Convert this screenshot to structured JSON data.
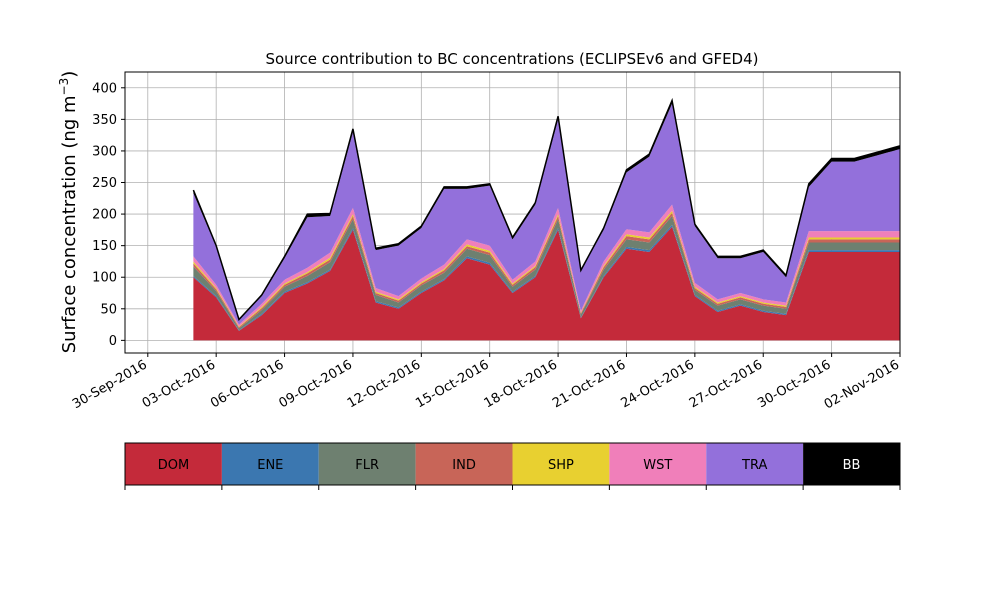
{
  "chart_data": {
    "type": "area",
    "stacked": true,
    "title": "Source contribution to BC concentrations (ECLIPSEv6 and GFED4)",
    "ylabel": "Surface concentration (ng m",
    "ylabel_sup": "−3",
    "ylabel_close": ")",
    "xlabel": "",
    "ylim": [
      -20,
      425
    ],
    "yticks": [
      0,
      50,
      100,
      150,
      200,
      250,
      300,
      350,
      400
    ],
    "xlim_days_note": "",
    "x_axis": {
      "start": "2016-09-29",
      "end": "2016-11-02",
      "ticks": [
        "30-Sep-2016",
        "03-Oct-2016",
        "06-Oct-2016",
        "09-Oct-2016",
        "12-Oct-2016",
        "15-Oct-2016",
        "18-Oct-2016",
        "21-Oct-2016",
        "24-Oct-2016",
        "27-Oct-2016",
        "30-Oct-2016",
        "02-Nov-2016"
      ]
    },
    "grid": true,
    "x": [
      "2016-10-02",
      "2016-10-03",
      "2016-10-04",
      "2016-10-05",
      "2016-10-06",
      "2016-10-07",
      "2016-10-08",
      "2016-10-09",
      "2016-10-10",
      "2016-10-11",
      "2016-10-12",
      "2016-10-13",
      "2016-10-14",
      "2016-10-15",
      "2016-10-16",
      "2016-10-17",
      "2016-10-18",
      "2016-10-19",
      "2016-10-20",
      "2016-10-21",
      "2016-10-22",
      "2016-10-23",
      "2016-10-24",
      "2016-10-25",
      "2016-10-26",
      "2016-10-27",
      "2016-10-28",
      "2016-10-29",
      "2016-10-30",
      "2016-10-31",
      "2016-11-01",
      "2016-11-02"
    ],
    "series": [
      {
        "name": "DOM",
        "color": "#c42a3a",
        "values": [
          100,
          68,
          15,
          40,
          75,
          90,
          110,
          175,
          60,
          50,
          75,
          95,
          130,
          120,
          75,
          100,
          175,
          35,
          100,
          145,
          140,
          180,
          70,
          45,
          55,
          45,
          40,
          140,
          140,
          140,
          140,
          140
        ]
      },
      {
        "name": "ENE",
        "color": "#3b77b0",
        "values": [
          2,
          2,
          1,
          2,
          2,
          2,
          2,
          3,
          2,
          2,
          2,
          2,
          3,
          3,
          2,
          2,
          3,
          1,
          2,
          3,
          3,
          3,
          2,
          2,
          2,
          2,
          2,
          3,
          3,
          3,
          3,
          3
        ]
      },
      {
        "name": "FLR",
        "color": "#6e8070",
        "values": [
          15,
          8,
          3,
          6,
          8,
          10,
          12,
          14,
          10,
          8,
          10,
          10,
          12,
          12,
          8,
          10,
          14,
          5,
          10,
          12,
          12,
          14,
          8,
          8,
          8,
          8,
          8,
          12,
          12,
          12,
          12,
          12
        ]
      },
      {
        "name": "IND",
        "color": "#c86558",
        "values": [
          5,
          3,
          2,
          3,
          3,
          4,
          4,
          5,
          3,
          3,
          3,
          4,
          4,
          4,
          3,
          4,
          5,
          2,
          4,
          5,
          5,
          5,
          3,
          3,
          3,
          3,
          3,
          5,
          5,
          5,
          5,
          5
        ]
      },
      {
        "name": "SHP",
        "color": "#e8d030",
        "values": [
          3,
          2,
          1,
          2,
          2,
          2,
          3,
          3,
          2,
          2,
          2,
          2,
          3,
          3,
          2,
          2,
          3,
          1,
          2,
          3,
          3,
          3,
          2,
          2,
          2,
          2,
          2,
          3,
          3,
          3,
          3,
          3
        ]
      },
      {
        "name": "WST",
        "color": "#f07fba",
        "values": [
          8,
          5,
          3,
          5,
          6,
          7,
          8,
          10,
          6,
          5,
          6,
          7,
          8,
          8,
          6,
          7,
          10,
          3,
          7,
          8,
          8,
          10,
          6,
          5,
          5,
          5,
          5,
          10,
          10,
          10,
          10,
          10
        ]
      },
      {
        "name": "TRA",
        "color": "#9370db",
        "values": [
          100,
          60,
          7,
          12,
          34,
          80,
          58,
          120,
          60,
          80,
          80,
          120,
          80,
          95,
          64,
          90,
          140,
          63,
          50,
          90,
          120,
          160,
          90,
          65,
          55,
          75,
          40,
          70,
          110,
          110,
          120,
          130
        ]
      },
      {
        "name": "BB",
        "color": "#000000",
        "values": [
          5,
          2,
          1,
          2,
          3,
          5,
          4,
          5,
          3,
          3,
          3,
          3,
          3,
          3,
          3,
          3,
          5,
          1,
          3,
          4,
          4,
          5,
          3,
          3,
          3,
          3,
          3,
          5,
          5,
          5,
          5,
          5
        ]
      }
    ],
    "legend": {
      "placement": "bottom",
      "labels": [
        {
          "name": "DOM",
          "color": "#c42a3a",
          "text_color": "#000000"
        },
        {
          "name": "ENE",
          "color": "#3b77b0",
          "text_color": "#000000"
        },
        {
          "name": "FLR",
          "color": "#6e8070",
          "text_color": "#000000"
        },
        {
          "name": "IND",
          "color": "#c86558",
          "text_color": "#000000"
        },
        {
          "name": "SHP",
          "color": "#e8d030",
          "text_color": "#000000"
        },
        {
          "name": "WST",
          "color": "#f07fba",
          "text_color": "#000000"
        },
        {
          "name": "TRA",
          "color": "#9370db",
          "text_color": "#000000"
        },
        {
          "name": "BB",
          "color": "#000000",
          "text_color": "#ffffff"
        }
      ]
    }
  }
}
